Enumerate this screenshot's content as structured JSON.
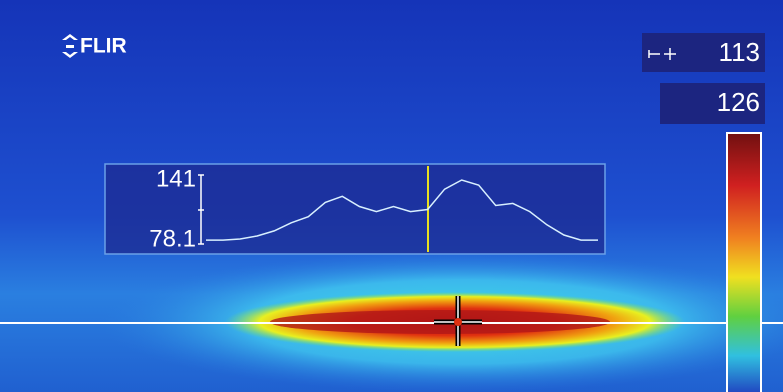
{
  "header": {
    "logo": "FLIR"
  },
  "readouts": {
    "spot": 113,
    "range_max": 126
  },
  "profile": {
    "max": 141,
    "min": 78.1,
    "values": [
      80,
      80,
      81,
      84,
      89,
      97,
      103,
      117,
      123,
      113,
      108,
      113,
      108,
      110,
      130,
      139,
      134,
      114,
      116,
      108,
      95,
      85,
      80,
      80
    ]
  }
}
